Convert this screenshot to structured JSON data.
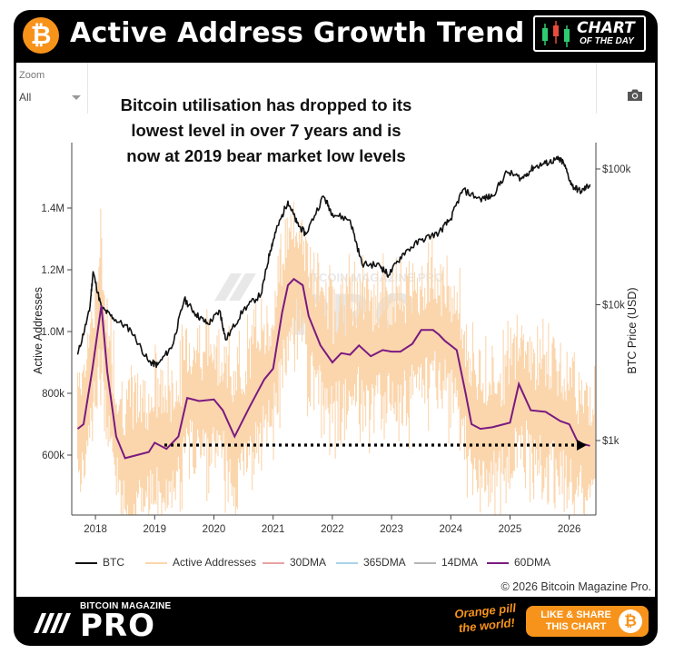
{
  "header": {
    "title": "Active Address Growth Trend",
    "badge_line1": "CHART",
    "badge_line2": "OF THE DAY"
  },
  "toolbar": {
    "zoom_label": "Zoom",
    "zoom_value": "All"
  },
  "annotation": "Bitcoin utilisation has dropped to its lowest level in over 7 years and is now at 2019 bear market low levels",
  "watermark": "BITCOIN MAGAZINE PRO",
  "copyright": "© 2026 Bitcoin Magazine Pro.",
  "footer": {
    "brand_small": "BITCOIN MAGAZINE",
    "brand_big": "PRO",
    "tagline": "Orange pill the world!",
    "share_label": "LIKE & SHARE THIS CHART"
  },
  "colors": {
    "btc": "#111111",
    "active": "#fbd6ad",
    "dma30": "#e9a3a3",
    "dma365": "#a9d3e6",
    "dma14": "#b5b5b5",
    "dma60": "#7a1a80",
    "accent": "#f7931a"
  },
  "chart_data": {
    "type": "line",
    "ylabel": "Active Addresses",
    "y2label": "BTC Price (USD)",
    "x_ticks": [
      "2018",
      "2019",
      "2020",
      "2021",
      "2022",
      "2023",
      "2024",
      "2025",
      "2026"
    ],
    "y_ticks": [
      "600k",
      "800k",
      "1.0M",
      "1.2M",
      "1.4M"
    ],
    "y2_ticks": [
      "$1k",
      "$10k",
      "$100k"
    ],
    "y2_scale": "log",
    "legend": [
      "BTC",
      "Active Addresses",
      "30DMA",
      "365DMA",
      "14DMA",
      "60DMA"
    ],
    "legend_placement": "bottom",
    "series": [
      {
        "name": "BTC",
        "axis": "right",
        "x": [
          2017.7,
          2017.9,
          2017.96,
          2018.1,
          2018.3,
          2018.6,
          2018.9,
          2019.05,
          2019.3,
          2019.5,
          2019.7,
          2019.9,
          2020.1,
          2020.2,
          2020.5,
          2020.8,
          2020.95,
          2021.05,
          2021.25,
          2021.4,
          2021.55,
          2021.85,
          2022.0,
          2022.3,
          2022.5,
          2022.8,
          2022.95,
          2023.2,
          2023.5,
          2023.8,
          2024.0,
          2024.2,
          2024.5,
          2024.7,
          2024.95,
          2025.2,
          2025.4,
          2025.6,
          2025.8,
          2025.9,
          2026.05,
          2026.2,
          2026.35
        ],
        "values": [
          4300,
          9000,
          17500,
          9500,
          8000,
          6500,
          3800,
          3600,
          5000,
          11000,
          8500,
          7200,
          9000,
          5500,
          9200,
          12000,
          25000,
          35000,
          58000,
          40000,
          33000,
          63000,
          47000,
          42000,
          20000,
          19500,
          16500,
          24000,
          30000,
          34000,
          43000,
          70000,
          60000,
          63000,
          95000,
          85000,
          103000,
          110000,
          118000,
          112000,
          75000,
          68000,
          77000
        ]
      },
      {
        "name": "60DMA",
        "axis": "left",
        "x": [
          2017.7,
          2017.8,
          2017.95,
          2018.1,
          2018.2,
          2018.35,
          2018.5,
          2018.7,
          2018.9,
          2019.0,
          2019.2,
          2019.4,
          2019.55,
          2019.75,
          2020.0,
          2020.15,
          2020.35,
          2020.6,
          2020.85,
          2021.0,
          2021.15,
          2021.25,
          2021.35,
          2021.5,
          2021.6,
          2021.8,
          2022.0,
          2022.15,
          2022.3,
          2022.45,
          2022.65,
          2022.85,
          2023.0,
          2023.15,
          2023.35,
          2023.5,
          2023.7,
          2023.8,
          2023.9,
          2024.1,
          2024.25,
          2024.35,
          2024.5,
          2024.7,
          2024.9,
          2025.0,
          2025.15,
          2025.35,
          2025.6,
          2025.85,
          2026.0,
          2026.15,
          2026.35
        ],
        "values": [
          685000,
          700000,
          880000,
          1085000,
          870000,
          660000,
          590000,
          600000,
          610000,
          640000,
          620000,
          660000,
          785000,
          775000,
          780000,
          745000,
          660000,
          755000,
          845000,
          880000,
          1060000,
          1150000,
          1170000,
          1150000,
          1050000,
          955000,
          900000,
          930000,
          925000,
          955000,
          920000,
          940000,
          935000,
          935000,
          960000,
          1005000,
          1005000,
          990000,
          970000,
          940000,
          800000,
          700000,
          685000,
          690000,
          700000,
          705000,
          830000,
          745000,
          740000,
          710000,
          700000,
          640000,
          630000
        ]
      }
    ]
  }
}
